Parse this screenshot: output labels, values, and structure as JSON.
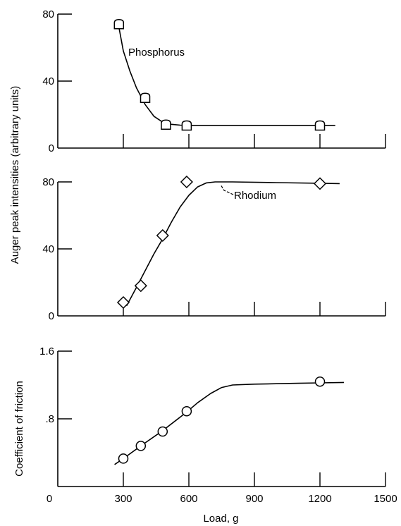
{
  "chart_data": [
    {
      "type": "scatter",
      "panel": "phosphorus",
      "marker": "square",
      "xlim": [
        0,
        1500
      ],
      "ylim": [
        0,
        80
      ],
      "x_ticks": [
        300,
        600,
        900,
        1200,
        1500
      ],
      "y_ticks": [
        0,
        40,
        80
      ],
      "y_tick_labels": [
        "0",
        "40",
        "80"
      ],
      "annotation": "Phosphorus",
      "series": [
        {
          "x": [
            280,
            400,
            495,
            590,
            1200
          ],
          "y": [
            74,
            30,
            14,
            13.5,
            13.5
          ]
        }
      ],
      "curve": {
        "x": [
          280,
          300,
          330,
          360,
          400,
          440,
          480,
          520,
          560,
          600,
          800,
          1000,
          1200,
          1270
        ],
        "y": [
          72,
          58,
          46,
          36,
          26,
          19,
          15.5,
          14.2,
          13.7,
          13.5,
          13.5,
          13.5,
          13.5,
          13.5
        ]
      }
    },
    {
      "type": "scatter",
      "panel": "rhodium",
      "marker": "diamond",
      "xlim": [
        0,
        1500
      ],
      "ylim": [
        0,
        80
      ],
      "x_ticks": [
        300,
        600,
        900,
        1200,
        1500
      ],
      "y_ticks": [
        0,
        40,
        80
      ],
      "y_tick_labels": [
        "0",
        "40",
        "80"
      ],
      "annotation": "Rhodium",
      "series": [
        {
          "x": [
            300,
            380,
            480,
            590,
            1200
          ],
          "y": [
            8,
            18,
            48,
            80,
            79
          ]
        }
      ],
      "curve": {
        "x": [
          315,
          360,
          400,
          440,
          480,
          520,
          560,
          600,
          640,
          680,
          720,
          800,
          1000,
          1200,
          1290
        ],
        "y": [
          6,
          17,
          27,
          37,
          46,
          56,
          65,
          72,
          77,
          79.4,
          80,
          80,
          79.6,
          79.2,
          79
        ]
      }
    },
    {
      "type": "scatter",
      "panel": "friction",
      "marker": "circle",
      "xlim": [
        0,
        1500
      ],
      "ylim": [
        0,
        1.6
      ],
      "x_ticks": [
        0,
        300,
        600,
        900,
        1200,
        1500
      ],
      "x_tick_labels": [
        "0",
        "300",
        "600",
        "900",
        "1200",
        "1500"
      ],
      "y_ticks": [
        0.8,
        1.6
      ],
      "y_tick_labels": [
        ".8",
        "1.6"
      ],
      "xlabel": "Load, g",
      "ylabel": "Coefficient of friction",
      "series": [
        {
          "x": [
            300,
            380,
            480,
            590,
            1200
          ],
          "y": [
            0.33,
            0.48,
            0.65,
            0.89,
            1.24
          ]
        }
      ],
      "curve": {
        "x": [
          260,
          300,
          380,
          480,
          590,
          640,
          700,
          750,
          800,
          900,
          1000,
          1100,
          1200,
          1310
        ],
        "y": [
          0.26,
          0.33,
          0.48,
          0.66,
          0.88,
          0.99,
          1.1,
          1.17,
          1.2,
          1.21,
          1.215,
          1.22,
          1.225,
          1.23
        ]
      }
    }
  ],
  "shared_ylabel": "Auger peak intensities (arbitrary units)"
}
